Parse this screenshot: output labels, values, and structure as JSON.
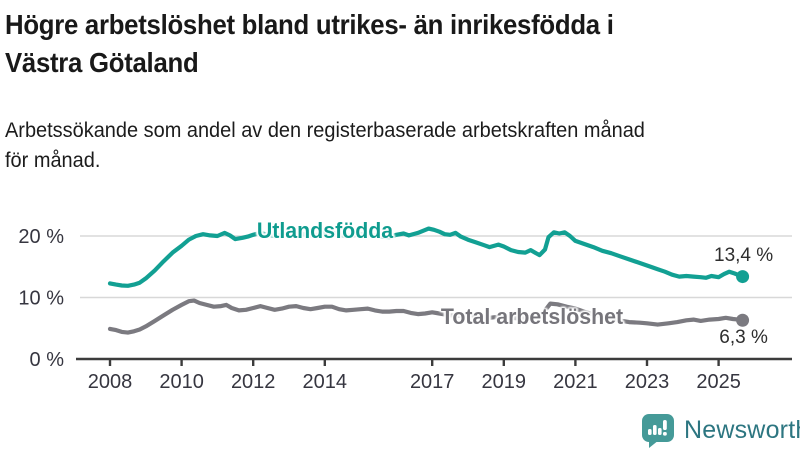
{
  "header": {
    "title": "Högre arbetslöshet bland utrikes- än inrikesfödda i Västra Götaland",
    "title_lines": [
      "Högre arbetslöshet bland utrikes- än inrikesfödda i",
      "Västra Götaland"
    ],
    "subtitle": "Arbetssökande som andel av den registerbaserade arbetskraften månad för månad.",
    "subtitle_lines": [
      "Arbetssökande som andel av den registerbaserade arbetskraften månad",
      "för månad."
    ]
  },
  "chart_data": {
    "type": "line",
    "title": "Högre arbetslöshet bland utrikes- än inrikesfödda i Västra Götaland",
    "xlabel": "",
    "ylabel": "Arbetssökande som andel av den registerbaserade arbetskraften",
    "grid": true,
    "x_axis": {
      "ticks": [
        2008,
        2010,
        2012,
        2014,
        2017,
        2019,
        2021,
        2023,
        2025
      ],
      "tick_labels": [
        "2008",
        "2010",
        "2012",
        "2014",
        "2017",
        "2019",
        "2021",
        "2023",
        "2025"
      ],
      "range": [
        2007.0,
        2026.0
      ]
    },
    "y_axis": {
      "ticks": [
        0,
        10,
        20
      ],
      "tick_labels": [
        "0 %",
        "10 %",
        "20 %"
      ],
      "range": [
        0,
        23
      ]
    },
    "colors": {
      "foreign_born": "#12a093",
      "total": "#7b7a80",
      "grid": "#d8d8d8",
      "axis": "#3c3c3c",
      "tick_text": "#363640"
    },
    "series": [
      {
        "name": "Utlandsfödda",
        "end_label": "13,4 %",
        "end_value": 13.4,
        "color": "#12a093",
        "label_color": "#0f9c8f",
        "label_at": {
          "year": 2014.0,
          "pct": 20.8
        },
        "end_label_side": "above",
        "points": [
          [
            2008.0,
            12.3
          ],
          [
            2008.17,
            12.1
          ],
          [
            2008.33,
            11.95
          ],
          [
            2008.5,
            11.9
          ],
          [
            2008.67,
            12.1
          ],
          [
            2008.83,
            12.4
          ],
          [
            2009.0,
            13.1
          ],
          [
            2009.25,
            14.4
          ],
          [
            2009.5,
            15.9
          ],
          [
            2009.75,
            17.3
          ],
          [
            2010.0,
            18.4
          ],
          [
            2010.2,
            19.4
          ],
          [
            2010.4,
            20.0
          ],
          [
            2010.6,
            20.3
          ],
          [
            2010.8,
            20.1
          ],
          [
            2011.0,
            20.0
          ],
          [
            2011.2,
            20.5
          ],
          [
            2011.35,
            20.1
          ],
          [
            2011.5,
            19.5
          ],
          [
            2011.7,
            19.7
          ],
          [
            2011.85,
            19.9
          ],
          [
            2012.0,
            20.2
          ],
          [
            2012.2,
            20.5
          ],
          [
            2012.4,
            20.2
          ],
          [
            2012.6,
            20.0
          ],
          [
            2012.8,
            20.2
          ],
          [
            2013.0,
            20.5
          ],
          [
            2013.2,
            20.6
          ],
          [
            2013.4,
            20.3
          ],
          [
            2013.6,
            20.1
          ],
          [
            2013.8,
            20.2
          ],
          [
            2014.0,
            20.5
          ],
          [
            2014.2,
            20.6
          ],
          [
            2014.4,
            20.2
          ],
          [
            2014.6,
            20.0
          ],
          [
            2014.8,
            20.1
          ],
          [
            2015.0,
            20.3
          ],
          [
            2015.2,
            20.4
          ],
          [
            2015.4,
            20.1
          ],
          [
            2015.6,
            19.9
          ],
          [
            2015.8,
            19.8
          ],
          [
            2016.0,
            20.2
          ],
          [
            2016.2,
            20.4
          ],
          [
            2016.35,
            20.1
          ],
          [
            2016.6,
            20.5
          ],
          [
            2016.9,
            21.2
          ],
          [
            2017.05,
            21.0
          ],
          [
            2017.2,
            20.7
          ],
          [
            2017.35,
            20.3
          ],
          [
            2017.5,
            20.2
          ],
          [
            2017.65,
            20.5
          ],
          [
            2017.8,
            19.9
          ],
          [
            2018.0,
            19.4
          ],
          [
            2018.2,
            19.0
          ],
          [
            2018.45,
            18.5
          ],
          [
            2018.6,
            18.2
          ],
          [
            2018.85,
            18.6
          ],
          [
            2019.0,
            18.3
          ],
          [
            2019.2,
            17.7
          ],
          [
            2019.4,
            17.4
          ],
          [
            2019.6,
            17.3
          ],
          [
            2019.75,
            17.7
          ],
          [
            2019.9,
            17.2
          ],
          [
            2020.0,
            16.9
          ],
          [
            2020.15,
            17.8
          ],
          [
            2020.25,
            19.8
          ],
          [
            2020.4,
            20.6
          ],
          [
            2020.55,
            20.4
          ],
          [
            2020.7,
            20.6
          ],
          [
            2020.85,
            20.0
          ],
          [
            2021.0,
            19.2
          ],
          [
            2021.25,
            18.7
          ],
          [
            2021.5,
            18.2
          ],
          [
            2021.75,
            17.6
          ],
          [
            2022.0,
            17.2
          ],
          [
            2022.25,
            16.7
          ],
          [
            2022.5,
            16.2
          ],
          [
            2022.75,
            15.7
          ],
          [
            2023.0,
            15.2
          ],
          [
            2023.15,
            14.9
          ],
          [
            2023.3,
            14.6
          ],
          [
            2023.5,
            14.2
          ],
          [
            2023.7,
            13.7
          ],
          [
            2023.9,
            13.4
          ],
          [
            2024.1,
            13.5
          ],
          [
            2024.3,
            13.4
          ],
          [
            2024.5,
            13.3
          ],
          [
            2024.65,
            13.2
          ],
          [
            2024.8,
            13.5
          ],
          [
            2025.0,
            13.3
          ],
          [
            2025.15,
            13.8
          ],
          [
            2025.3,
            14.2
          ],
          [
            2025.45,
            13.9
          ],
          [
            2025.58,
            13.6
          ],
          [
            2025.67,
            13.4
          ]
        ]
      },
      {
        "name": "Total arbetslöshet",
        "end_label": "6,3 %",
        "end_value": 6.3,
        "color": "#7b7a80",
        "label_color": "#76757b",
        "label_at": {
          "year": 2019.8,
          "pct": 6.9
        },
        "end_label_side": "below",
        "points": [
          [
            2008.0,
            4.9
          ],
          [
            2008.17,
            4.7
          ],
          [
            2008.33,
            4.4
          ],
          [
            2008.5,
            4.3
          ],
          [
            2008.67,
            4.5
          ],
          [
            2008.83,
            4.8
          ],
          [
            2009.0,
            5.3
          ],
          [
            2009.25,
            6.2
          ],
          [
            2009.5,
            7.1
          ],
          [
            2009.75,
            8.0
          ],
          [
            2010.0,
            8.8
          ],
          [
            2010.2,
            9.4
          ],
          [
            2010.35,
            9.5
          ],
          [
            2010.5,
            9.1
          ],
          [
            2010.7,
            8.8
          ],
          [
            2010.9,
            8.5
          ],
          [
            2011.1,
            8.6
          ],
          [
            2011.25,
            8.8
          ],
          [
            2011.4,
            8.3
          ],
          [
            2011.6,
            7.9
          ],
          [
            2011.8,
            8.0
          ],
          [
            2012.0,
            8.3
          ],
          [
            2012.2,
            8.6
          ],
          [
            2012.4,
            8.3
          ],
          [
            2012.6,
            8.0
          ],
          [
            2012.8,
            8.2
          ],
          [
            2013.0,
            8.5
          ],
          [
            2013.2,
            8.6
          ],
          [
            2013.4,
            8.3
          ],
          [
            2013.6,
            8.1
          ],
          [
            2013.8,
            8.3
          ],
          [
            2014.0,
            8.5
          ],
          [
            2014.2,
            8.5
          ],
          [
            2014.4,
            8.1
          ],
          [
            2014.6,
            7.9
          ],
          [
            2014.8,
            8.0
          ],
          [
            2015.0,
            8.1
          ],
          [
            2015.2,
            8.2
          ],
          [
            2015.4,
            7.9
          ],
          [
            2015.6,
            7.7
          ],
          [
            2015.8,
            7.7
          ],
          [
            2016.0,
            7.8
          ],
          [
            2016.2,
            7.8
          ],
          [
            2016.4,
            7.5
          ],
          [
            2016.6,
            7.3
          ],
          [
            2016.8,
            7.4
          ],
          [
            2017.0,
            7.6
          ],
          [
            2017.2,
            7.4
          ],
          [
            2017.5,
            7.1
          ],
          [
            2017.8,
            7.0
          ],
          [
            2018.0,
            7.2
          ],
          [
            2018.3,
            6.9
          ],
          [
            2018.6,
            6.7
          ],
          [
            2018.9,
            6.9
          ],
          [
            2019.1,
            6.8
          ],
          [
            2019.4,
            6.6
          ],
          [
            2019.7,
            6.7
          ],
          [
            2019.95,
            7.0
          ],
          [
            2020.1,
            7.5
          ],
          [
            2020.3,
            9.0
          ],
          [
            2020.5,
            8.9
          ],
          [
            2020.75,
            8.5
          ],
          [
            2021.0,
            8.2
          ],
          [
            2021.3,
            7.6
          ],
          [
            2021.6,
            7.1
          ],
          [
            2021.9,
            6.7
          ],
          [
            2022.2,
            6.3
          ],
          [
            2022.5,
            6.0
          ],
          [
            2022.8,
            5.9
          ],
          [
            2023.0,
            5.8
          ],
          [
            2023.3,
            5.6
          ],
          [
            2023.6,
            5.8
          ],
          [
            2023.85,
            6.0
          ],
          [
            2024.1,
            6.3
          ],
          [
            2024.3,
            6.4
          ],
          [
            2024.5,
            6.2
          ],
          [
            2024.75,
            6.4
          ],
          [
            2025.0,
            6.5
          ],
          [
            2025.2,
            6.7
          ],
          [
            2025.4,
            6.5
          ],
          [
            2025.55,
            6.4
          ],
          [
            2025.67,
            6.3
          ]
        ]
      }
    ]
  },
  "footer": {
    "brand": "Newsworthy",
    "brand_icon": "speech-bubble-bar-chart-exclamation",
    "brand_color": "#459a98",
    "brand_text_color": "#2d7681"
  }
}
